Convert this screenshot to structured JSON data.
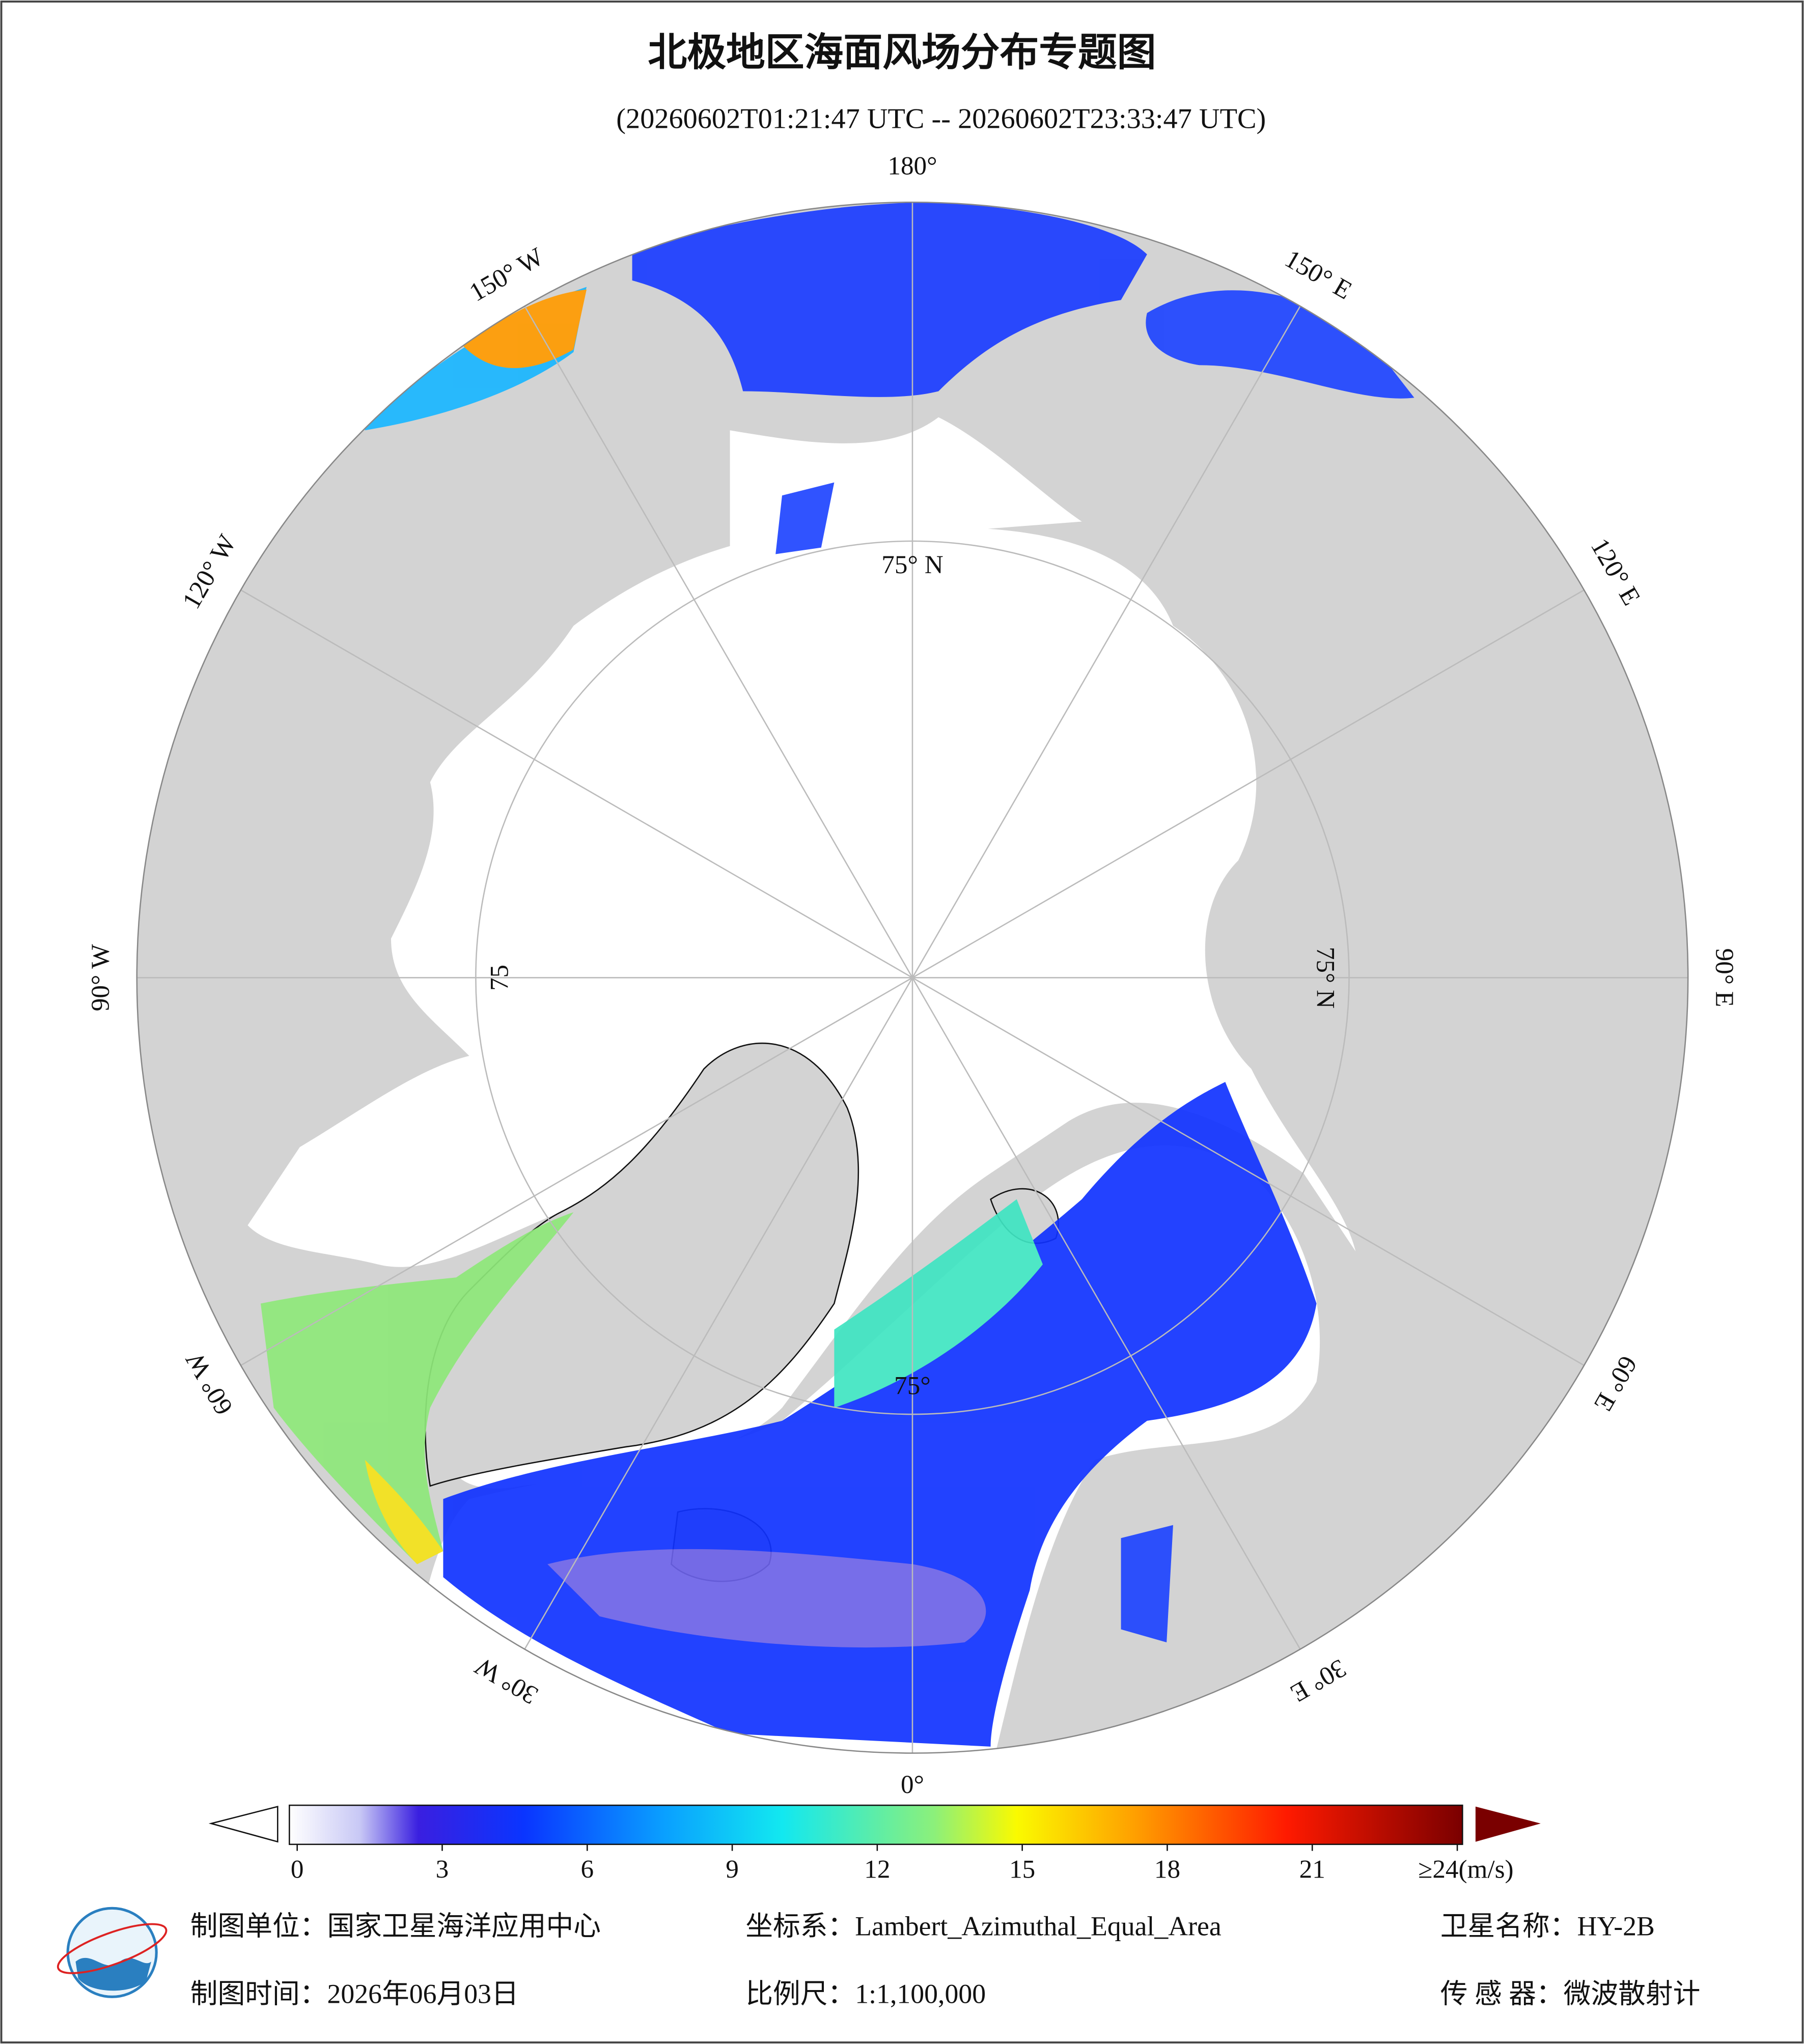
{
  "header": {
    "title": "北极地区海面风场分布专题图",
    "subtitle": "(20260602T01:21:47 UTC -- 20260602T23:33:47 UTC)"
  },
  "map": {
    "meridian_labels": [
      "0°",
      "30° E",
      "60° E",
      "90° E",
      "120° E",
      "150° E",
      "180°",
      "150° W",
      "120° W",
      "90° W",
      "60° W",
      "30° W"
    ],
    "parallel_labels": [
      "75° N",
      "75° N",
      "75°",
      "75"
    ]
  },
  "legend": {
    "range": [
      0,
      24
    ],
    "ticks": [
      0,
      3,
      6,
      9,
      12,
      15,
      18,
      21,
      {
        "value": 24,
        "label": "≥24(m/s)"
      }
    ]
  },
  "footer": {
    "unit": "制图单位：国家卫星海洋应用中心",
    "crs": "坐标系：Lambert_Azimuthal_Equal_Area",
    "satellite": "卫星名称：HY-2B",
    "date": "制图时间：2026年06月03日",
    "scale": "比例尺：1:1,100,000",
    "sensor": "传 感 器：微波散射计"
  }
}
